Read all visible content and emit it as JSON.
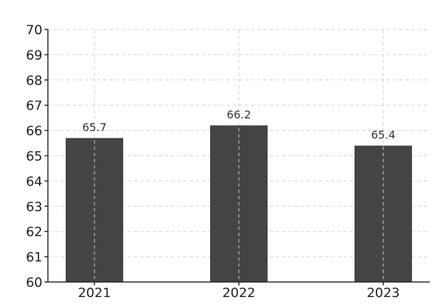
{
  "chart_data": {
    "type": "bar",
    "categories": [
      "2021",
      "2022",
      "2023"
    ],
    "values": [
      65.7,
      66.2,
      65.4
    ],
    "value_labels": [
      "65.7",
      "66.2",
      "65.4"
    ],
    "title": "",
    "xlabel": "",
    "ylabel": "",
    "ylim": [
      60,
      70
    ],
    "yticks": [
      "60",
      "61",
      "62",
      "63",
      "64",
      "65",
      "66",
      "67",
      "68",
      "69",
      "70"
    ],
    "grid": true,
    "legend": "none",
    "bar_color": "#444444"
  }
}
